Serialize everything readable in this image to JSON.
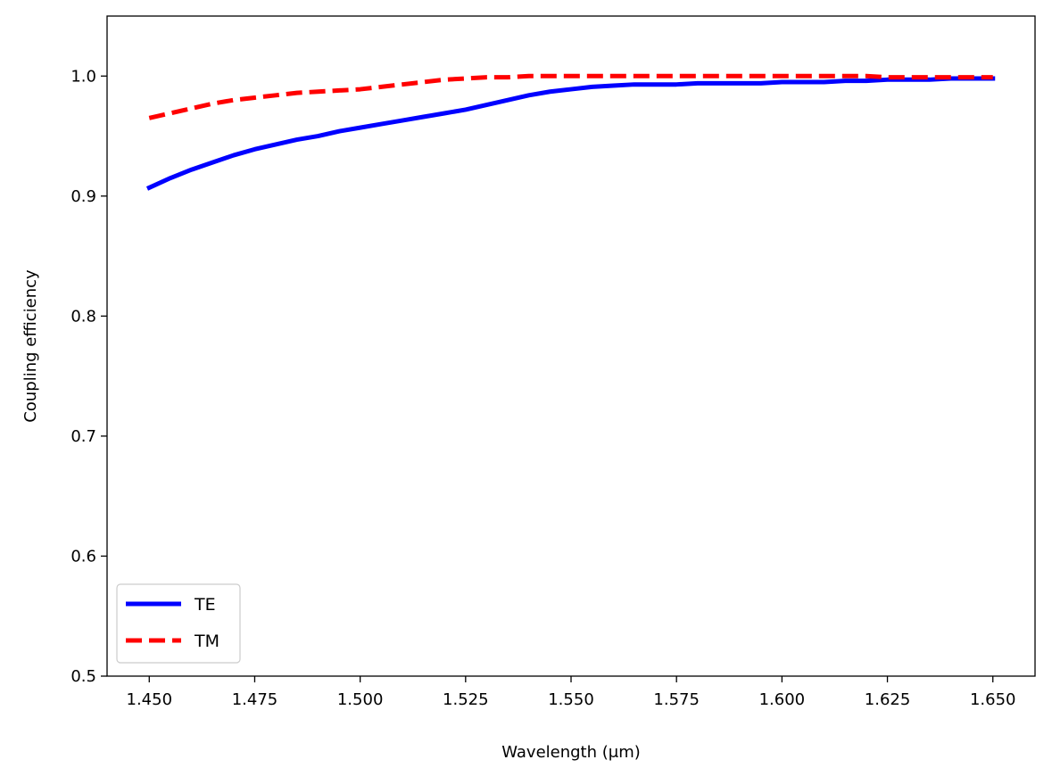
{
  "chart_data": {
    "type": "line",
    "title": "",
    "xlabel": "Wavelength (μm)",
    "ylabel": "Coupling efficiency",
    "xlim": [
      1.44,
      1.66
    ],
    "ylim": [
      0.5,
      1.05
    ],
    "xticks": [
      "1.450",
      "1.475",
      "1.500",
      "1.525",
      "1.550",
      "1.575",
      "1.600",
      "1.625",
      "1.650"
    ],
    "yticks": [
      "0.5",
      "0.6",
      "0.7",
      "0.8",
      "0.9",
      "1.0"
    ],
    "grid": false,
    "legend_position": "lower-left",
    "x": [
      1.45,
      1.455,
      1.46,
      1.465,
      1.47,
      1.475,
      1.48,
      1.485,
      1.49,
      1.495,
      1.5,
      1.505,
      1.51,
      1.515,
      1.52,
      1.525,
      1.53,
      1.535,
      1.54,
      1.545,
      1.55,
      1.555,
      1.56,
      1.565,
      1.57,
      1.575,
      1.58,
      1.585,
      1.59,
      1.595,
      1.6,
      1.605,
      1.61,
      1.615,
      1.62,
      1.625,
      1.63,
      1.635,
      1.64,
      1.645,
      1.65
    ],
    "series": [
      {
        "name": "TE",
        "color": "#0000ff",
        "style": "solid",
        "values": [
          0.907,
          0.915,
          0.922,
          0.928,
          0.934,
          0.939,
          0.943,
          0.947,
          0.95,
          0.954,
          0.957,
          0.96,
          0.963,
          0.966,
          0.969,
          0.972,
          0.976,
          0.98,
          0.984,
          0.987,
          0.989,
          0.991,
          0.992,
          0.993,
          0.993,
          0.993,
          0.994,
          0.994,
          0.994,
          0.994,
          0.995,
          0.995,
          0.995,
          0.996,
          0.996,
          0.997,
          0.997,
          0.997,
          0.998,
          0.998,
          0.998
        ]
      },
      {
        "name": "TM",
        "color": "#ff0000",
        "style": "dashed",
        "values": [
          0.965,
          0.969,
          0.973,
          0.977,
          0.98,
          0.982,
          0.984,
          0.986,
          0.987,
          0.988,
          0.989,
          0.991,
          0.993,
          0.995,
          0.997,
          0.998,
          0.999,
          0.999,
          1.0,
          1.0,
          1.0,
          1.0,
          1.0,
          1.0,
          1.0,
          1.0,
          1.0,
          1.0,
          1.0,
          1.0,
          1.0,
          1.0,
          1.0,
          1.0,
          1.0,
          0.999,
          0.999,
          0.999,
          0.999,
          0.999,
          0.999
        ]
      }
    ]
  }
}
